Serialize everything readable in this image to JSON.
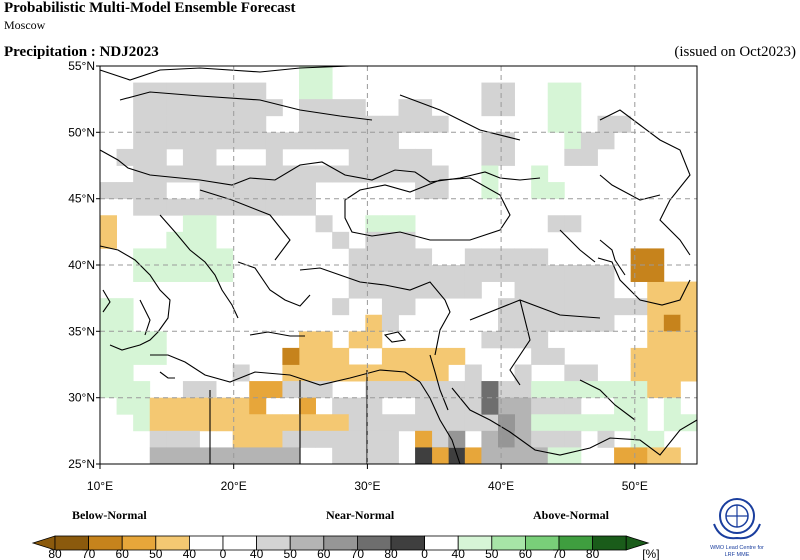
{
  "header": {
    "title": "Probabilistic Multi-Model Ensemble Forecast",
    "subtitle": "Moscow",
    "variable": "Precipitation : NDJ2023",
    "issued": "(issued on Oct2023)"
  },
  "axes": {
    "lat_labels": [
      "55°N",
      "50°N",
      "45°N",
      "40°N",
      "35°N",
      "30°N",
      "25°N"
    ],
    "lon_labels": [
      "10°E",
      "20°E",
      "30°E",
      "40°E",
      "50°E"
    ]
  },
  "legend": {
    "categories": [
      "Below-Normal",
      "Near-Normal",
      "Above-Normal"
    ],
    "ticks": [
      "80",
      "70",
      "60",
      "50",
      "40",
      "0",
      "40",
      "50",
      "60",
      "70",
      "80",
      "0",
      "40",
      "50",
      "60",
      "70",
      "80"
    ],
    "unit": "[%]",
    "colors": {
      "below": [
        "#8b5a0d",
        "#c6831c",
        "#e7a63a",
        "#f4c872"
      ],
      "neutral": "#ffffff",
      "near": [
        "#d3d3d3",
        "#b4b4b4",
        "#969696",
        "#6e6e6e",
        "#3f3f3f"
      ],
      "above": [
        "#d6f5d6",
        "#a7e5a7",
        "#79cf79",
        "#3f9e3f",
        "#1a5c1a"
      ]
    }
  },
  "logo": {
    "line1": "WMO Lead Centre for",
    "line2": "LRF MME"
  }
}
